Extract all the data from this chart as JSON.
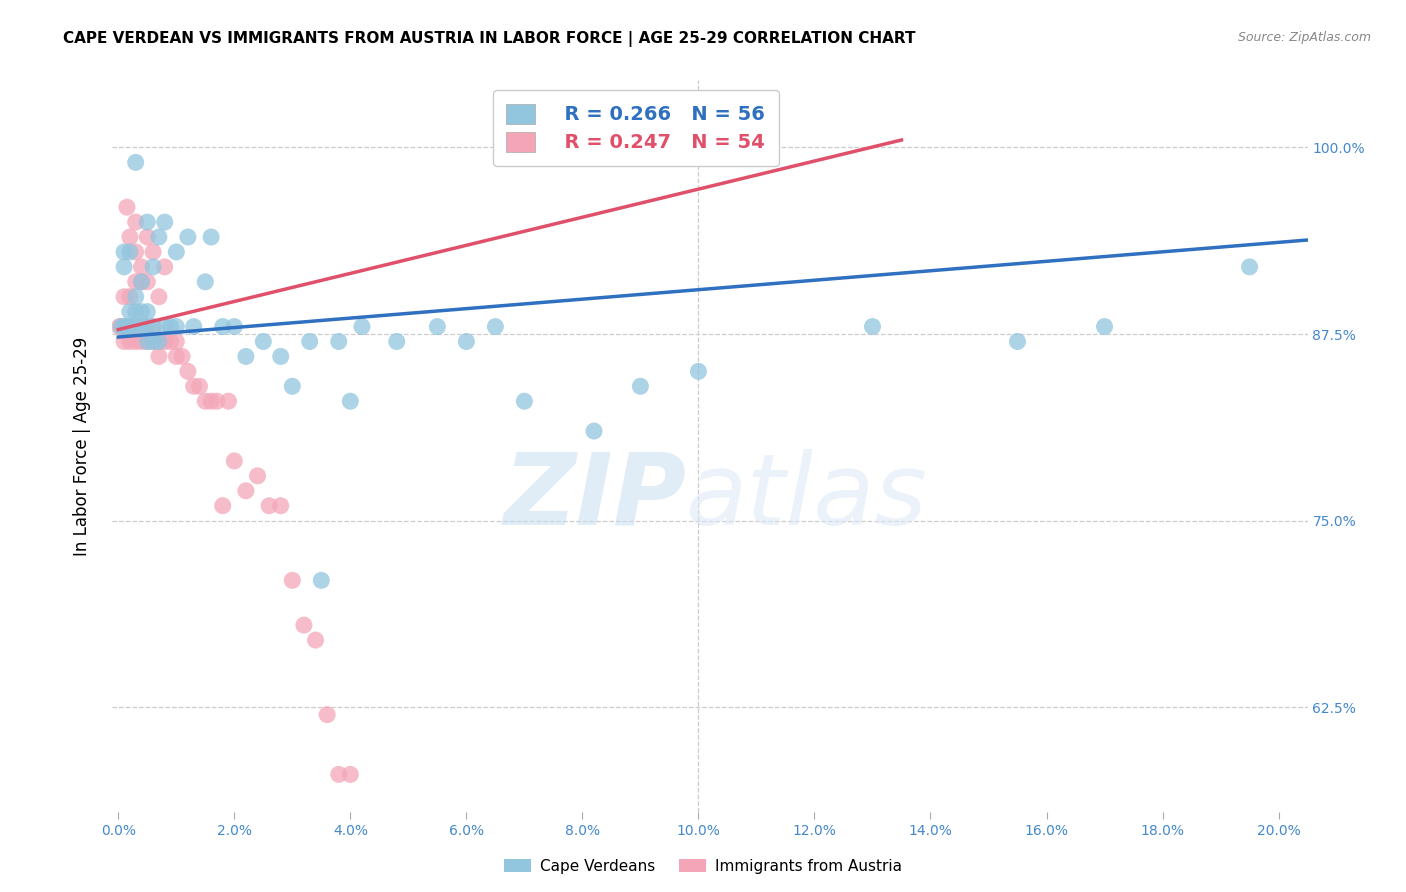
{
  "title": "CAPE VERDEAN VS IMMIGRANTS FROM AUSTRIA IN LABOR FORCE | AGE 25-29 CORRELATION CHART",
  "source": "Source: ZipAtlas.com",
  "xlabel_ticks": [
    "0.0%",
    "2.0%",
    "4.0%",
    "6.0%",
    "8.0%",
    "10.0%",
    "12.0%",
    "14.0%",
    "16.0%",
    "18.0%",
    "20.0%"
  ],
  "xlabel_vals": [
    0.0,
    0.02,
    0.04,
    0.06,
    0.08,
    0.1,
    0.12,
    0.14,
    0.16,
    0.18,
    0.2
  ],
  "ytick_vals": [
    0.625,
    0.75,
    0.875,
    1.0
  ],
  "ytick_labels": [
    "62.5%",
    "75.0%",
    "87.5%",
    "100.0%"
  ],
  "xlim": [
    -0.001,
    0.205
  ],
  "ylim": [
    0.555,
    1.045
  ],
  "ylabel_label": "In Labor Force | Age 25-29",
  "legend_blue_R": "R = 0.266",
  "legend_blue_N": "N = 56",
  "legend_pink_R": "R = 0.247",
  "legend_pink_N": "N = 54",
  "blue_color": "#92c5de",
  "pink_color": "#f4a6b8",
  "blue_line_color": "#3070c0",
  "pink_line_color": "#e0506a",
  "watermark_ZIP": "ZIP",
  "watermark_atlas": "atlas",
  "blue_scatter_x": [
    0.0005,
    0.001,
    0.001,
    0.001,
    0.0015,
    0.002,
    0.002,
    0.002,
    0.003,
    0.003,
    0.003,
    0.003,
    0.004,
    0.004,
    0.004,
    0.005,
    0.005,
    0.005,
    0.005,
    0.006,
    0.006,
    0.006,
    0.007,
    0.007,
    0.008,
    0.008,
    0.009,
    0.01,
    0.01,
    0.012,
    0.013,
    0.015,
    0.016,
    0.018,
    0.02,
    0.022,
    0.025,
    0.028,
    0.03,
    0.033,
    0.035,
    0.038,
    0.04,
    0.042,
    0.048,
    0.055,
    0.06,
    0.065,
    0.07,
    0.082,
    0.09,
    0.1,
    0.13,
    0.155,
    0.17,
    0.195
  ],
  "blue_scatter_y": [
    0.88,
    0.88,
    0.92,
    0.93,
    0.88,
    0.88,
    0.89,
    0.93,
    0.88,
    0.89,
    0.9,
    0.99,
    0.88,
    0.89,
    0.91,
    0.87,
    0.88,
    0.89,
    0.95,
    0.87,
    0.88,
    0.92,
    0.87,
    0.94,
    0.88,
    0.95,
    0.88,
    0.88,
    0.93,
    0.94,
    0.88,
    0.91,
    0.94,
    0.88,
    0.88,
    0.86,
    0.87,
    0.86,
    0.84,
    0.87,
    0.71,
    0.87,
    0.83,
    0.88,
    0.87,
    0.88,
    0.87,
    0.88,
    0.83,
    0.81,
    0.84,
    0.85,
    0.88,
    0.87,
    0.88,
    0.92
  ],
  "pink_scatter_x": [
    0.0002,
    0.0005,
    0.001,
    0.001,
    0.001,
    0.0015,
    0.002,
    0.002,
    0.002,
    0.002,
    0.003,
    0.003,
    0.003,
    0.003,
    0.003,
    0.004,
    0.004,
    0.004,
    0.004,
    0.005,
    0.005,
    0.005,
    0.005,
    0.006,
    0.006,
    0.006,
    0.007,
    0.007,
    0.007,
    0.008,
    0.008,
    0.009,
    0.01,
    0.01,
    0.011,
    0.012,
    0.013,
    0.014,
    0.015,
    0.016,
    0.017,
    0.018,
    0.019,
    0.02,
    0.022,
    0.024,
    0.026,
    0.028,
    0.03,
    0.032,
    0.034,
    0.036,
    0.038,
    0.04
  ],
  "pink_scatter_y": [
    0.88,
    0.88,
    0.87,
    0.88,
    0.9,
    0.96,
    0.87,
    0.88,
    0.9,
    0.94,
    0.87,
    0.88,
    0.91,
    0.93,
    0.95,
    0.87,
    0.88,
    0.91,
    0.92,
    0.87,
    0.88,
    0.91,
    0.94,
    0.87,
    0.88,
    0.93,
    0.86,
    0.87,
    0.9,
    0.87,
    0.92,
    0.87,
    0.86,
    0.87,
    0.86,
    0.85,
    0.84,
    0.84,
    0.83,
    0.83,
    0.83,
    0.76,
    0.83,
    0.79,
    0.77,
    0.78,
    0.76,
    0.76,
    0.71,
    0.68,
    0.67,
    0.62,
    0.58,
    0.58
  ],
  "blue_line_x": [
    0.0,
    0.205
  ],
  "blue_line_y": [
    0.873,
    0.938
  ],
  "pink_line_x": [
    0.0,
    0.135
  ],
  "pink_line_y": [
    0.878,
    1.005
  ],
  "grid_color": "#cccccc",
  "tick_color": "#4488cc",
  "bottom_legend_labels": [
    "Cape Verdeans",
    "Immigrants from Austria"
  ]
}
